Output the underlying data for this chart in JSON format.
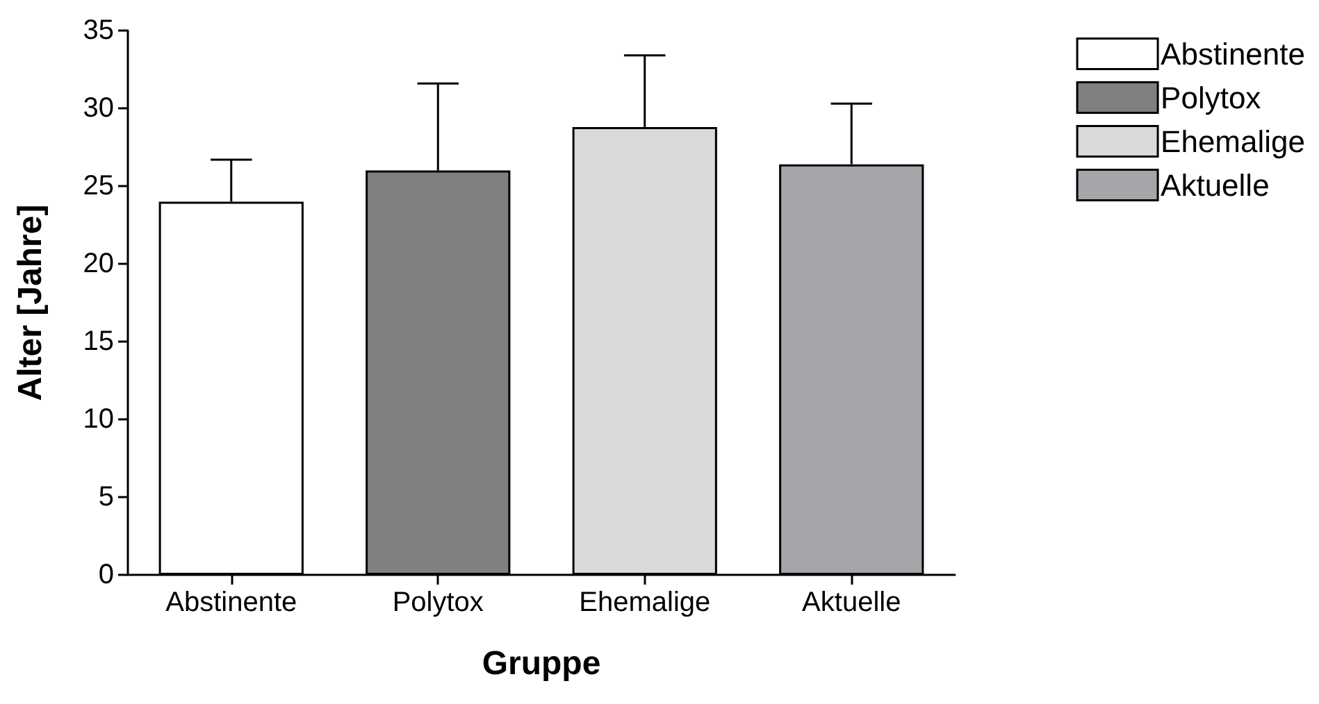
{
  "chart_data": {
    "type": "bar",
    "xlabel": "Gruppe",
    "ylabel": "Alter [Jahre]",
    "categories": [
      "Abstinente",
      "Polytox",
      "Ehemalige",
      "Aktuelle"
    ],
    "series": [
      {
        "name": "Abstinente",
        "color": "#ffffff",
        "values": [
          24,
          null,
          null,
          null
        ],
        "errors": [
          [
            24,
            26.7
          ],
          null,
          null,
          null
        ]
      },
      {
        "name": "Polytox",
        "color": "#808080",
        "values": [
          null,
          26,
          null,
          null
        ],
        "errors": [
          null,
          [
            26,
            31.6
          ],
          null,
          null
        ]
      },
      {
        "name": "Ehemalige",
        "color": "#d9d9d9",
        "values": [
          null,
          null,
          28.8,
          null
        ],
        "errors": [
          null,
          null,
          [
            28.8,
            33.4
          ],
          null
        ]
      },
      {
        "name": "Aktuelle",
        "color": "#a5a5aa",
        "values": [
          null,
          null,
          null,
          26.4
        ],
        "errors": [
          null,
          null,
          null,
          [
            26.4,
            30.3
          ]
        ]
      }
    ],
    "ylim": [
      0,
      35
    ],
    "yticks": [
      0,
      5,
      10,
      15,
      20,
      25,
      30,
      35
    ],
    "grid": false,
    "legend": "top right"
  }
}
